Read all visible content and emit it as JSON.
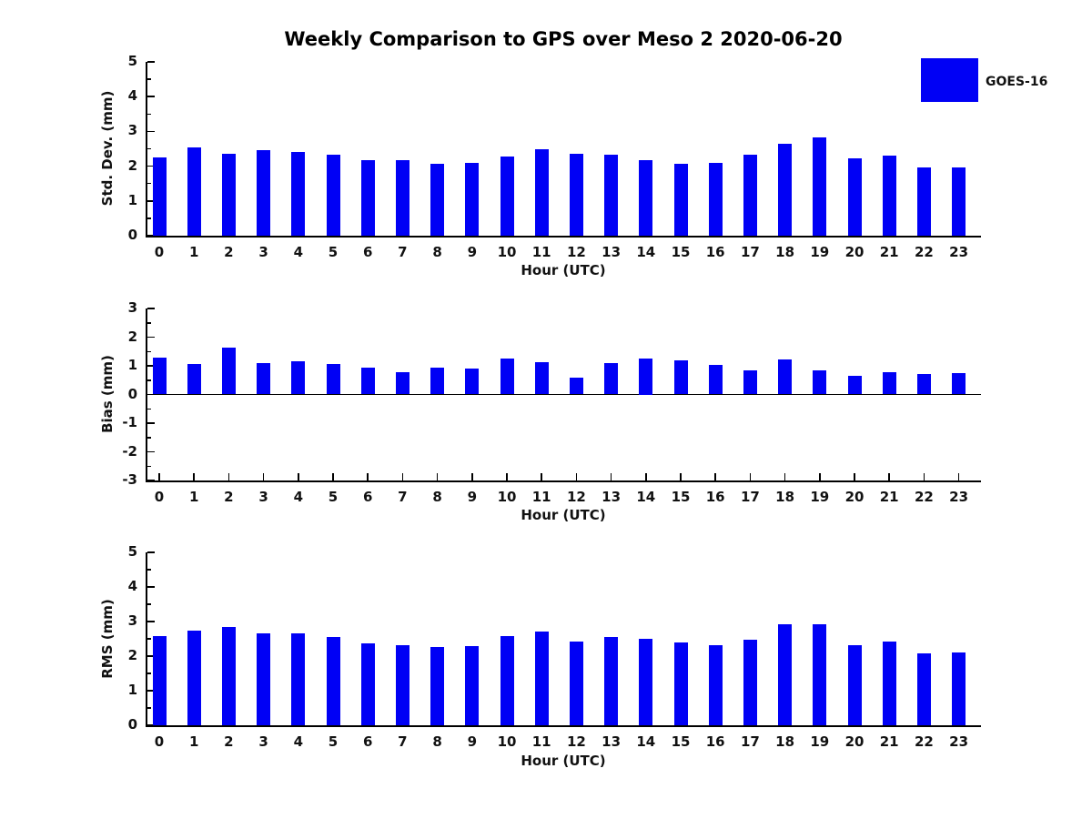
{
  "title": "Weekly Comparison to GPS over Meso 2 2020-06-20",
  "legend": {
    "label": "GOES-16",
    "color": "#0000f5"
  },
  "chart_data": [
    {
      "type": "bar",
      "series_name": "GOES-16",
      "ylabel": "Std. Dev. (mm)",
      "xlabel": "Hour (UTC)",
      "ylim": [
        0,
        5
      ],
      "yticks": [
        0,
        1,
        2,
        3,
        4,
        5
      ],
      "categories": [
        "0",
        "1",
        "2",
        "3",
        "4",
        "5",
        "6",
        "7",
        "8",
        "9",
        "10",
        "11",
        "12",
        "13",
        "14",
        "15",
        "16",
        "17",
        "18",
        "19",
        "20",
        "21",
        "22",
        "23"
      ],
      "values": [
        2.24,
        2.53,
        2.35,
        2.45,
        2.42,
        2.33,
        2.17,
        2.17,
        2.06,
        2.09,
        2.27,
        2.48,
        2.36,
        2.33,
        2.18,
        2.08,
        2.1,
        2.33,
        2.64,
        2.83,
        2.23,
        2.3,
        1.97,
        1.97
      ]
    },
    {
      "type": "bar",
      "series_name": "GOES-16",
      "ylabel": "Bias (mm)",
      "xlabel": "Hour (UTC)",
      "ylim": [
        -3,
        3
      ],
      "yticks": [
        -3,
        -2,
        -1,
        0,
        1,
        2,
        3
      ],
      "categories": [
        "0",
        "1",
        "2",
        "3",
        "4",
        "5",
        "6",
        "7",
        "8",
        "9",
        "10",
        "11",
        "12",
        "13",
        "14",
        "15",
        "16",
        "17",
        "18",
        "19",
        "20",
        "21",
        "22",
        "23"
      ],
      "values": [
        1.3,
        1.07,
        1.63,
        1.11,
        1.16,
        1.07,
        0.95,
        0.77,
        0.95,
        0.9,
        1.24,
        1.13,
        0.58,
        1.08,
        1.25,
        1.18,
        1.02,
        0.84,
        1.23,
        0.84,
        0.65,
        0.77,
        0.73,
        0.74
      ]
    },
    {
      "type": "bar",
      "series_name": "GOES-16",
      "ylabel": "RMS (mm)",
      "xlabel": "Hour (UTC)",
      "ylim": [
        0,
        5
      ],
      "yticks": [
        0,
        1,
        2,
        3,
        4,
        5
      ],
      "categories": [
        "0",
        "1",
        "2",
        "3",
        "4",
        "5",
        "6",
        "7",
        "8",
        "9",
        "10",
        "11",
        "12",
        "13",
        "14",
        "15",
        "16",
        "17",
        "18",
        "19",
        "20",
        "21",
        "22",
        "23"
      ],
      "values": [
        2.57,
        2.75,
        2.85,
        2.67,
        2.67,
        2.54,
        2.36,
        2.31,
        2.26,
        2.28,
        2.57,
        2.72,
        2.41,
        2.54,
        2.5,
        2.39,
        2.31,
        2.47,
        2.91,
        2.93,
        2.31,
        2.41,
        2.08,
        2.11
      ]
    }
  ]
}
